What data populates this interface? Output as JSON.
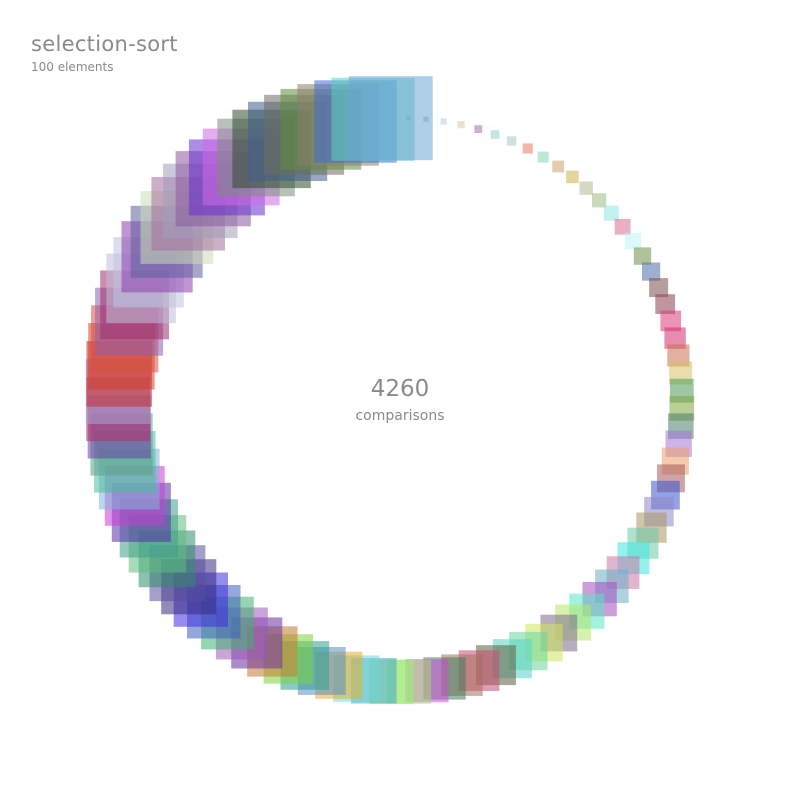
{
  "header": {
    "title": "selection-sort",
    "subtitle": "100 elements"
  },
  "stats": {
    "count": "4260",
    "label": "comparisons"
  },
  "elements": {
    "count": 100,
    "sizes": [
      6,
      14,
      22,
      30,
      38,
      46,
      54,
      62,
      70,
      78,
      86,
      94,
      102,
      110,
      118,
      126,
      134,
      142,
      150,
      158,
      166,
      174,
      182,
      190,
      198,
      206,
      214,
      222,
      230,
      238,
      246,
      254,
      262,
      270,
      278,
      286,
      294,
      302,
      310,
      318,
      326,
      334,
      342,
      350,
      358,
      366,
      374,
      382,
      390,
      398,
      406,
      414,
      422,
      430,
      438,
      446,
      454,
      462,
      470,
      478,
      486,
      494,
      502,
      510,
      518,
      526,
      534,
      542,
      550,
      558,
      566,
      574,
      582,
      590,
      598,
      606,
      614,
      622,
      630,
      638,
      646,
      654,
      662,
      670,
      678,
      686,
      694,
      702,
      710,
      718,
      726,
      734,
      742,
      750,
      758,
      766,
      774,
      782,
      790,
      798
    ],
    "colors": [
      "#c77aa6",
      "#c98fbf",
      "#b8cfd3",
      "#d9c59e",
      "#a86ab6",
      "#8fd1cf",
      "#a6c9c6",
      "#e87b66",
      "#86d6b8",
      "#c9a46e",
      "#cbb54a",
      "#b7b98f",
      "#9fbd86",
      "#92e3e5",
      "#d86d8f",
      "#b9f4f6",
      "#6e8f45",
      "#4e6fa8",
      "#7a4e4e",
      "#8d3f4f",
      "#d83a77",
      "#d42d6b",
      "#c96f52",
      "#d6c16a",
      "#4e9b5a",
      "#7fa83f",
      "#4b7f6b",
      "#a574d6",
      "#eb9f6e",
      "#a85a5a",
      "#3a56d4",
      "#8c86c6",
      "#a99662",
      "#6acaa8",
      "#3ee6e0",
      "#c979aa",
      "#6aaec4",
      "#a64cbd",
      "#57e6c5",
      "#b4e86a",
      "#7d6a8a",
      "#cfe65a",
      "#67d69c",
      "#5ad3c5",
      "#5e5e3e",
      "#c44c72",
      "#a76c5b",
      "#3e7e5e",
      "#c84cd2",
      "#a6d878",
      "#9bef72",
      "#3ea7c9",
      "#72d6d3",
      "#e8ad2e",
      "#5a8ec5",
      "#2ea08f",
      "#7fd13f",
      "#c57a2e",
      "#6a2ea0",
      "#9a5ab6",
      "#3eb36e",
      "#3e5ec0",
      "#3e2edc",
      "#3a2a7e",
      "#5a4e9e",
      "#2e8e6a",
      "#5ebe7e",
      "#3e9e8e",
      "#5a2ea6",
      "#c63ed6",
      "#7eb6d6",
      "#4abe9a",
      "#5e9e8a",
      "#6a3ea6",
      "#b4296a",
      "#a6a6d6",
      "#c62e2e",
      "#d63e2e",
      "#d6503e",
      "#8e5eae",
      "#9e2e6e",
      "#c2bed8",
      "#bec4de",
      "#8e3eae",
      "#5e5e9e",
      "#ccdcb4",
      "#a66e9e",
      "#9e9ebe",
      "#8a5a9e",
      "#6a2ed0",
      "#d06ae6",
      "#7e8e7e",
      "#2e4e2e",
      "#3e5e8e",
      "#6e6e5e",
      "#5e8e3e",
      "#8e7e6e",
      "#3e6ed0",
      "#5ed0c0",
      "#6ea6d6"
    ]
  }
}
